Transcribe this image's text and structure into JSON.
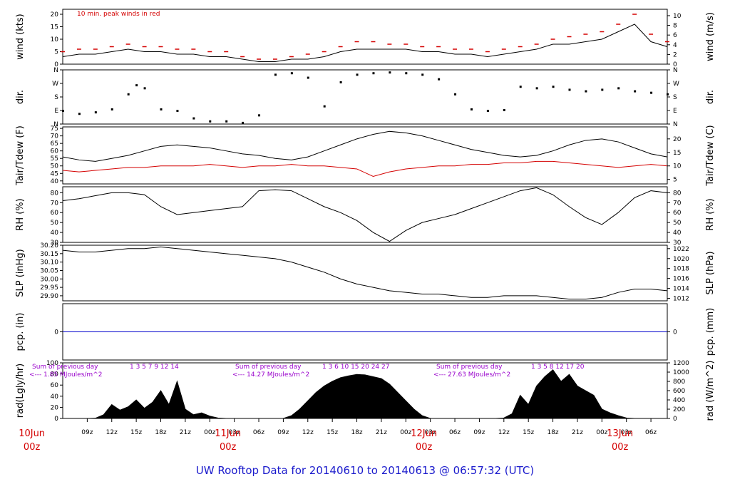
{
  "title": "UW Rooftop Data for 20140610  to  20140613 @ 06:57:32  (UTC)",
  "colors": {
    "main": "#000000",
    "peak": "#d40000",
    "dew": "#d40000",
    "pcp": "#0000cc",
    "sums": "#9900cc",
    "title": "#1a1acc"
  },
  "chart_data": [
    {
      "type": "line",
      "panel": "wind",
      "ylabel_left": "wind (kts)",
      "ylabel_right": "wind (m/s)",
      "ylim": [
        0,
        22
      ],
      "yticks_left": [
        "0",
        "5",
        "10",
        "15",
        "20"
      ],
      "yticks_right": [
        "0",
        "2",
        "4",
        "6",
        "8",
        "10"
      ],
      "annotation": "10 min. peak winds in red",
      "series": [
        {
          "name": "wind",
          "x": [
            0,
            2,
            4,
            6,
            8,
            10,
            12,
            14,
            16,
            18,
            20,
            22,
            24,
            26,
            28,
            30,
            32,
            34,
            36,
            38,
            40,
            42,
            44,
            46,
            48,
            50,
            52,
            54,
            56,
            58,
            60,
            62,
            64,
            66,
            68,
            70,
            72,
            74
          ],
          "values": [
            3,
            4,
            4,
            5,
            6,
            5,
            5,
            4,
            4,
            3,
            3,
            2,
            1,
            1,
            2,
            2,
            3,
            5,
            6,
            6,
            6,
            6,
            5,
            5,
            4,
            4,
            3,
            4,
            5,
            6,
            8,
            8,
            9,
            10,
            13,
            16,
            9,
            7
          ]
        },
        {
          "name": "10 min. peak winds",
          "x": [
            0,
            2,
            4,
            6,
            8,
            10,
            12,
            14,
            16,
            18,
            20,
            22,
            24,
            26,
            28,
            30,
            32,
            34,
            36,
            38,
            40,
            42,
            44,
            46,
            48,
            50,
            52,
            54,
            56,
            58,
            60,
            62,
            64,
            66,
            68,
            70,
            72,
            74
          ],
          "values": [
            5,
            6,
            6,
            7,
            8,
            7,
            7,
            6,
            6,
            5,
            5,
            3,
            2,
            2,
            3,
            4,
            5,
            7,
            9,
            9,
            8,
            8,
            7,
            7,
            6,
            6,
            5,
            6,
            7,
            8,
            10,
            11,
            12,
            13,
            16,
            20,
            12,
            9
          ]
        }
      ]
    },
    {
      "type": "scatter",
      "panel": "dir.",
      "ylabel_left": "dir.",
      "ylabel_right": "dir.",
      "yticks": [
        "N",
        "E",
        "S",
        "W",
        "N"
      ],
      "ylim": [
        0,
        360
      ],
      "series": [
        {
          "name": "dir",
          "x": [
            0,
            2,
            4,
            6,
            8,
            9,
            10,
            12,
            14,
            16,
            18,
            20,
            22,
            24,
            26,
            28,
            30,
            32,
            34,
            36,
            38,
            40,
            42,
            44,
            46,
            48,
            50,
            52,
            54,
            56,
            58,
            60,
            62,
            64,
            66,
            68,
            70,
            72,
            74
          ],
          "values": [
            90,
            70,
            80,
            100,
            200,
            260,
            240,
            100,
            90,
            40,
            20,
            20,
            10,
            60,
            330,
            340,
            310,
            120,
            280,
            330,
            340,
            345,
            340,
            330,
            300,
            200,
            100,
            90,
            95,
            250,
            240,
            250,
            230,
            220,
            230,
            240,
            220,
            210,
            200
          ]
        }
      ]
    },
    {
      "type": "line",
      "panel": "temp",
      "ylabel_left": "Tair/Tdew (F)",
      "ylabel_right": "Tair/Tdew (C)",
      "ylim": [
        38,
        76
      ],
      "yticks_left": [
        "40",
        "45",
        "50",
        "55",
        "60",
        "65",
        "70",
        "75"
      ],
      "yticks_right": [
        "5",
        "10",
        "15",
        "20"
      ],
      "series": [
        {
          "name": "Tair",
          "x": [
            0,
            2,
            4,
            6,
            8,
            10,
            12,
            14,
            16,
            18,
            20,
            22,
            24,
            26,
            28,
            30,
            32,
            34,
            36,
            38,
            40,
            42,
            44,
            46,
            48,
            50,
            52,
            54,
            56,
            58,
            60,
            62,
            64,
            66,
            68,
            70,
            72,
            74
          ],
          "values": [
            56,
            54,
            53,
            55,
            57,
            60,
            63,
            64,
            63,
            62,
            60,
            58,
            57,
            55,
            54,
            56,
            60,
            64,
            68,
            71,
            73,
            72,
            70,
            67,
            64,
            61,
            59,
            57,
            56,
            57,
            60,
            64,
            67,
            68,
            66,
            62,
            58,
            56
          ]
        },
        {
          "name": "Tdew",
          "x": [
            0,
            2,
            4,
            6,
            8,
            10,
            12,
            14,
            16,
            18,
            20,
            22,
            24,
            26,
            28,
            30,
            32,
            34,
            36,
            38,
            40,
            42,
            44,
            46,
            48,
            50,
            52,
            54,
            56,
            58,
            60,
            62,
            64,
            66,
            68,
            70,
            72,
            74
          ],
          "values": [
            47,
            46,
            47,
            48,
            49,
            49,
            50,
            50,
            50,
            51,
            50,
            49,
            50,
            50,
            51,
            50,
            50,
            49,
            48,
            43,
            46,
            48,
            49,
            50,
            50,
            51,
            51,
            52,
            52,
            53,
            53,
            52,
            51,
            50,
            49,
            50,
            51,
            50
          ]
        }
      ]
    },
    {
      "type": "line",
      "panel": "rh",
      "ylabel_left": "RH (%)",
      "ylabel_right": "RH (%)",
      "ylim": [
        30,
        86
      ],
      "yticks_left": [
        "30",
        "40",
        "50",
        "60",
        "70",
        "80"
      ],
      "yticks_right": [
        "30",
        "40",
        "50",
        "60",
        "70",
        "80"
      ],
      "series": [
        {
          "name": "RH",
          "x": [
            0,
            2,
            4,
            6,
            8,
            10,
            12,
            14,
            16,
            18,
            20,
            22,
            24,
            26,
            28,
            30,
            32,
            34,
            36,
            38,
            40,
            42,
            44,
            46,
            48,
            50,
            52,
            54,
            56,
            58,
            60,
            62,
            64,
            66,
            68,
            70,
            72,
            74
          ],
          "values": [
            72,
            74,
            77,
            80,
            80,
            78,
            66,
            58,
            60,
            62,
            64,
            66,
            82,
            83,
            82,
            74,
            66,
            60,
            52,
            40,
            31,
            42,
            50,
            54,
            58,
            64,
            70,
            76,
            82,
            85,
            78,
            66,
            55,
            48,
            60,
            75,
            82,
            80
          ]
        }
      ]
    },
    {
      "type": "line",
      "panel": "slp",
      "ylabel_left": "SLP (inHg)",
      "ylabel_right": "SLP (hPa)",
      "ylim": [
        29.87,
        30.2
      ],
      "yticks_left": [
        "29.90",
        "29.95",
        "30.00",
        "30.05",
        "30.10",
        "30.15",
        "30.20"
      ],
      "yticks_right": [
        "1012",
        "1014",
        "1016",
        "1018",
        "1020",
        "1022"
      ],
      "series": [
        {
          "name": "SLP",
          "x": [
            0,
            2,
            4,
            6,
            8,
            10,
            12,
            14,
            16,
            18,
            20,
            22,
            24,
            26,
            28,
            30,
            32,
            34,
            36,
            38,
            40,
            42,
            44,
            46,
            48,
            50,
            52,
            54,
            56,
            58,
            60,
            62,
            64,
            66,
            68,
            70,
            72,
            74
          ],
          "values": [
            30.17,
            30.16,
            30.16,
            30.17,
            30.18,
            30.18,
            30.19,
            30.18,
            30.17,
            30.16,
            30.15,
            30.14,
            30.13,
            30.12,
            30.1,
            30.07,
            30.04,
            30.0,
            29.97,
            29.95,
            29.93,
            29.92,
            29.91,
            29.91,
            29.9,
            29.89,
            29.89,
            29.9,
            29.9,
            29.9,
            29.89,
            29.88,
            29.88,
            29.89,
            29.92,
            29.94,
            29.94,
            29.93
          ]
        }
      ]
    },
    {
      "type": "line",
      "panel": "pcp",
      "ylabel_left": "pcp. (in)",
      "ylabel_right": "pcp. (mm)",
      "ylim": [
        -1,
        1
      ],
      "yticks_left": [
        "0"
      ],
      "yticks_right": [
        "0"
      ],
      "series": [
        {
          "name": "pcp",
          "x": [
            0,
            74
          ],
          "values": [
            0,
            0
          ]
        }
      ]
    },
    {
      "type": "area",
      "panel": "rad",
      "ylabel_left": "rad(Lgly/hr)",
      "ylabel_right": "rad (W/m^2)",
      "ylim": [
        0,
        1200
      ],
      "yticks_left": [
        "0",
        "20",
        "40",
        "60",
        "80",
        "100"
      ],
      "yticks_right": [
        "0",
        "200",
        "400",
        "600",
        "800",
        "1000",
        "1200"
      ],
      "daily_sums": [
        {
          "label1": "Sum of previous day",
          "label2": "<--- 1.85 MJoules/m^2",
          "hours": "1 3 5 7 9 12 14"
        },
        {
          "label1": "Sum of previous day",
          "label2": "<--- 14.27 MJoules/m^2",
          "hours": "1 3 6 10 15 20 24 27"
        },
        {
          "label1": "Sum of previous day",
          "label2": "<--- 27.63 MJoules/m^2",
          "hours": "1 3 5 8 12 17 20"
        }
      ],
      "series": [
        {
          "name": "rad",
          "x": [
            0,
            2,
            3,
            4,
            5,
            6,
            7,
            8,
            9,
            10,
            11,
            12,
            13,
            14,
            15,
            16,
            17,
            18,
            19,
            20,
            21,
            22,
            24,
            25,
            26,
            27,
            28,
            29,
            30,
            31,
            32,
            33,
            34,
            35,
            36,
            37,
            38,
            39,
            40,
            41,
            42,
            43,
            44,
            45,
            46,
            48,
            49,
            50,
            51,
            52,
            53,
            54,
            55,
            56,
            57,
            58,
            59,
            60,
            61,
            62,
            63,
            64,
            65,
            66,
            67,
            68,
            69,
            70,
            71,
            72,
            74
          ],
          "values": [
            0,
            0,
            0,
            5,
            80,
            300,
            180,
            250,
            400,
            220,
            350,
            600,
            300,
            800,
            200,
            80,
            120,
            50,
            10,
            0,
            0,
            0,
            0,
            0,
            0,
            0,
            60,
            200,
            380,
            560,
            700,
            800,
            880,
            920,
            950,
            940,
            900,
            860,
            740,
            560,
            380,
            200,
            60,
            0,
            0,
            0,
            0,
            0,
            0,
            0,
            0,
            10,
            100,
            500,
            300,
            700,
            900,
            1050,
            800,
            950,
            700,
            600,
            500,
            200,
            120,
            60,
            10,
            0,
            0,
            0,
            0
          ]
        }
      ]
    }
  ],
  "xaxis": {
    "hour_labels": [
      "09z",
      "12z",
      "15z",
      "18z",
      "21z",
      "00z",
      "03z",
      "06z",
      "09z",
      "12z",
      "15z",
      "18z",
      "21z",
      "00z",
      "03z",
      "06z",
      "09z",
      "12z",
      "15z",
      "18z",
      "21z",
      "00z",
      "03z",
      "06z"
    ],
    "day_labels": [
      {
        "line1": "10Jun",
        "line2": "00z"
      },
      {
        "line1": "11Jun",
        "line2": "00z"
      },
      {
        "line1": "12Jun",
        "line2": "00z"
      },
      {
        "line1": "13Jun",
        "line2": "00z"
      }
    ]
  }
}
